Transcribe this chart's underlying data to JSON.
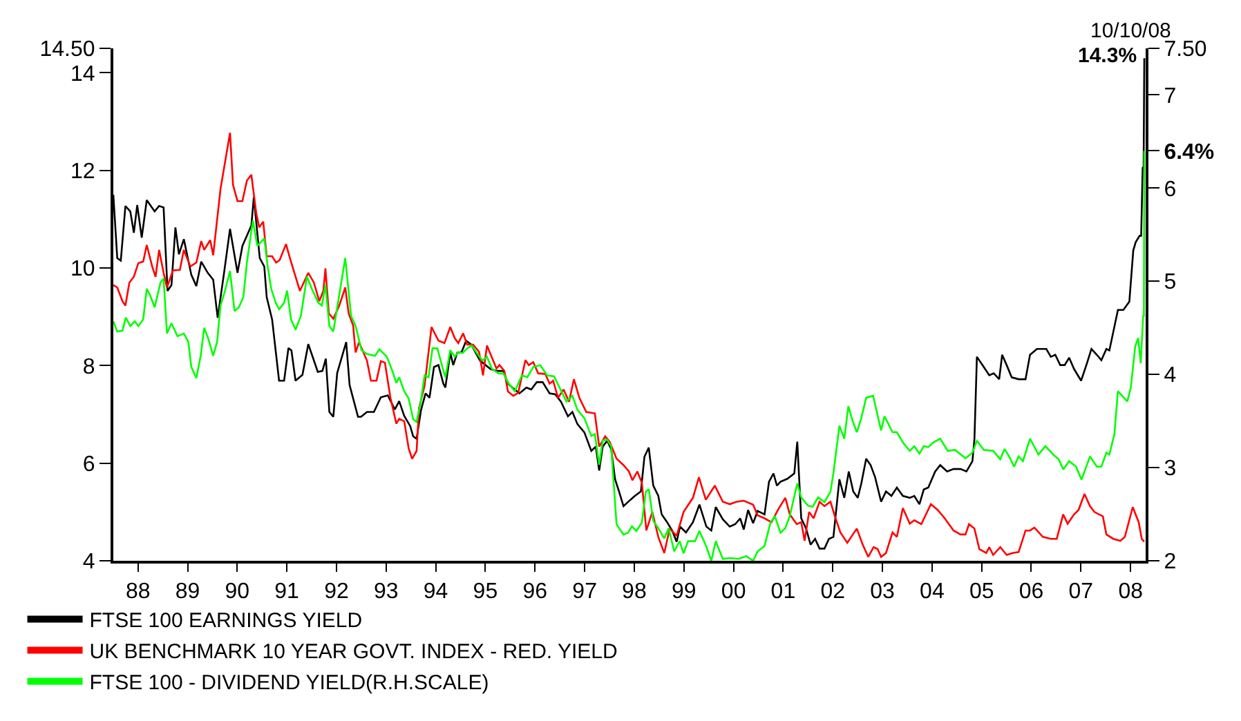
{
  "chart_data": {
    "type": "line",
    "series": [
      {
        "name": "FTSE 100 EARNINGS YIELD",
        "color": "#000000",
        "x": [
          "1988-01-01",
          "1988-01-30",
          "1988-02-25",
          "1988-03-30",
          "1988-05-05",
          "1988-05-31",
          "1988-06-25",
          "1988-07-28",
          "1988-09-03",
          "1988-10-31",
          "1988-12-03",
          "1989-01-05",
          "1989-02-03",
          "1989-03-04",
          "1989-04-02",
          "1989-04-28",
          "1989-06-03",
          "1989-07-28",
          "1989-09-03",
          "1989-10-09",
          "1989-11-26",
          "1990-01-05",
          "1990-02-07",
          "1990-03-26",
          "1990-05-09",
          "1990-07-03",
          "1990-08-08",
          "1990-10-13",
          "1990-10-31",
          "1990-12-14",
          "1991-01-16",
          "1991-02-03",
          "1991-03-15",
          "1991-05-05",
          "1991-06-11",
          "1991-07-13",
          "1991-08-04",
          "1991-09-03",
          "1991-10-24",
          "1991-12-06",
          "1992-02-14",
          "1992-03-19",
          "1992-04-13",
          "1992-05-09",
          "1992-06-07",
          "1992-07-06",
          "1992-09-10",
          "1992-10-05",
          "1992-12-06",
          "1992-12-28",
          "1993-02-10",
          "1993-04-02",
          "1993-05-23",
          "1993-07-13",
          "1993-09-03",
          "1993-10-05",
          "1993-11-11",
          "1993-12-25",
          "1994-01-16",
          "1994-02-10",
          "1994-03-15",
          "1994-04-17",
          "1994-05-16",
          "1994-06-18",
          "1994-07-21",
          "1994-08-26",
          "1994-09-10",
          "1994-10-16",
          "1994-11-07",
          "1994-12-06",
          "1995-01-08",
          "1995-02-10",
          "1995-03-19",
          "1995-04-21",
          "1995-05-23",
          "1995-07-03",
          "1995-08-08",
          "1995-09-21",
          "1995-11-11",
          "1995-12-14",
          "1996-01-16",
          "1996-03-08",
          "1996-04-28",
          "1996-06-03",
          "1996-07-13",
          "1996-08-26",
          "1996-10-16",
          "1996-11-26",
          "1997-01-08",
          "1997-02-28",
          "1997-04-02",
          "1997-05-09",
          "1997-06-29",
          "1997-08-19",
          "1997-09-21",
          "1997-10-16",
          "1997-11-11",
          "1997-12-14",
          "1998-01-12",
          "1998-02-10",
          "1998-03-11",
          "1998-04-13",
          "1998-06-03",
          "1998-07-06",
          "1998-08-19",
          "1998-09-14",
          "1998-10-16",
          "1998-11-18",
          "1998-12-25",
          "1999-01-19",
          "1999-02-28",
          "1999-04-06",
          "1999-05-09",
          "1999-06-03",
          "1999-07-17",
          "1999-09-06",
          "1999-10-24",
          "1999-12-14",
          "2000-01-19",
          "2000-02-21",
          "2000-04-13",
          "2000-06-03",
          "2000-07-13",
          "2000-08-19",
          "2000-09-14",
          "2000-10-16",
          "2000-11-22",
          "2000-12-25",
          "2001-02-14",
          "2001-03-19",
          "2001-04-21",
          "2001-05-16",
          "2001-06-11",
          "2001-08-01",
          "2001-09-21",
          "2001-10-13",
          "2001-11-11",
          "2001-12-17",
          "2002-01-19",
          "2002-02-21",
          "2002-03-26",
          "2002-05-01",
          "2002-06-03",
          "2002-07-06",
          "2002-08-19",
          "2002-09-24",
          "2002-10-27",
          "2002-11-29",
          "2003-01-01",
          "2003-01-27",
          "2003-03-04",
          "2003-04-06",
          "2003-05-09",
          "2003-06-22",
          "2003-07-28",
          "2003-09-06",
          "2003-10-16",
          "2003-11-29",
          "2004-01-19",
          "2004-02-21",
          "2004-03-30",
          "2004-05-01",
          "2004-06-03",
          "2004-07-24",
          "2004-08-30",
          "2004-10-20",
          "2004-12-06",
          "2005-01-27",
          "2005-03-11",
          "2005-04-24",
          "2005-05-09",
          "2005-05-27",
          "2005-07-17",
          "2005-08-26",
          "2005-09-28",
          "2005-11-07",
          "2005-11-29",
          "2006-01-01",
          "2006-02-07",
          "2006-03-30",
          "2006-05-20",
          "2006-06-22",
          "2006-08-12",
          "2006-10-20",
          "2006-11-22",
          "2006-12-25",
          "2007-01-30",
          "2007-03-04",
          "2007-04-06",
          "2007-05-12",
          "2007-07-03",
          "2007-08-12",
          "2007-09-17",
          "2007-10-27",
          "2007-11-29",
          "2008-01-05",
          "2008-01-27",
          "2008-02-25",
          "2008-03-30",
          "2008-05-09",
          "2008-06-22",
          "2008-07-21",
          "2008-08-08",
          "2008-09-06",
          "2008-09-17",
          "2008-09-28",
          "2008-10-05",
          "2008-10-10"
        ],
        "values": [
          11.5,
          10.2,
          10.15,
          11.27,
          11.16,
          10.72,
          11.29,
          10.62,
          11.39,
          11.16,
          11.27,
          11.24,
          9.53,
          9.65,
          10.83,
          10.28,
          10.59,
          9.86,
          9.63,
          10.13,
          9.9,
          9.76,
          8.98,
          9.9,
          10.8,
          9.9,
          10.45,
          10.87,
          11.45,
          10.2,
          10.03,
          9.4,
          8.94,
          7.69,
          7.69,
          8.36,
          8.31,
          7.69,
          7.81,
          8.44,
          7.87,
          7.89,
          8.14,
          7.05,
          6.95,
          7.85,
          8.48,
          7.6,
          6.95,
          6.95,
          7.05,
          7.05,
          7.35,
          7.39,
          7.1,
          7.27,
          6.97,
          6.76,
          6.55,
          6.5,
          7.09,
          7.43,
          7.34,
          7.97,
          8.01,
          7.63,
          7.55,
          8.26,
          8.01,
          8.26,
          8.28,
          8.51,
          8.43,
          8.26,
          8.1,
          8.01,
          7.93,
          7.89,
          7.89,
          7.63,
          7.55,
          7.43,
          7.55,
          7.51,
          7.66,
          7.66,
          7.43,
          7.41,
          7.26,
          6.96,
          7.05,
          6.8,
          6.63,
          6.25,
          6.34,
          5.85,
          6.34,
          6.46,
          6.29,
          5.67,
          5.42,
          5.12,
          5.25,
          5.33,
          5.42,
          6.13,
          6.32,
          5.54,
          5.33,
          4.95,
          4.79,
          4.62,
          4.39,
          4.7,
          4.58,
          4.79,
          5.15,
          4.7,
          4.62,
          5.1,
          4.85,
          4.7,
          4.75,
          4.87,
          4.64,
          5.04,
          4.77,
          5.02,
          4.95,
          5.62,
          5.79,
          5.54,
          5.62,
          5.68,
          5.79,
          6.44,
          4.87,
          4.66,
          4.33,
          4.45,
          4.25,
          4.25,
          4.45,
          4.49,
          5.67,
          5.29,
          5.83,
          5.42,
          5.29,
          5.58,
          6.09,
          5.96,
          5.71,
          5.21,
          5.42,
          5.33,
          5.5,
          5.33,
          5.29,
          5.33,
          5.16,
          5.46,
          5.5,
          5.83,
          5.96,
          5.83,
          5.88,
          5.88,
          5.83,
          6.04,
          6.5,
          8.18,
          7.97,
          7.8,
          7.84,
          7.72,
          8.22,
          8.01,
          7.76,
          7.72,
          7.72,
          8.22,
          8.34,
          8.34,
          8.18,
          8.22,
          8.01,
          8.01,
          8.16,
          7.93,
          7.69,
          8.02,
          8.34,
          8.22,
          8.11,
          8.34,
          8.31,
          8.69,
          9.14,
          9.14,
          9.31,
          10.36,
          10.53,
          10.66,
          10.66,
          12.05,
          12.07,
          14.3
        ]
      },
      {
        "name": "UK BENCHMARK 10 YEAR GOVT. INDEX - RED. YIELD",
        "color": "#ff0000",
        "x": [
          "1988-01-01",
          "1988-01-30",
          "1988-03-08",
          "1988-03-30",
          "1988-04-28",
          "1988-05-31",
          "1988-07-03",
          "1988-08-08",
          "1988-09-03",
          "1988-10-13",
          "1988-11-07",
          "1988-12-03",
          "1989-01-05",
          "1989-01-30",
          "1989-03-15",
          "1989-05-05",
          "1989-06-03",
          "1989-07-21",
          "1989-09-03",
          "1989-10-09",
          "1989-10-31",
          "1989-12-14",
          "1990-01-05",
          "1990-02-28",
          "1990-05-09",
          "1990-05-31",
          "1990-07-03",
          "1990-08-08",
          "1990-09-10",
          "1990-10-13",
          "1990-11-18",
          "1990-12-10",
          "1991-01-08",
          "1991-02-03",
          "1991-03-15",
          "1991-04-13",
          "1991-05-09",
          "1991-06-25",
          "1991-07-24",
          "1991-10-05",
          "1991-12-06",
          "1992-01-16",
          "1992-02-25",
          "1992-03-26",
          "1992-04-10",
          "1992-05-05",
          "1992-06-07",
          "1992-07-21",
          "1992-09-03",
          "1992-09-28",
          "1992-10-31",
          "1992-11-18",
          "1992-12-14",
          "1993-02-10",
          "1993-03-11",
          "1993-04-21",
          "1993-05-23",
          "1993-06-22",
          "1993-08-01",
          "1993-09-14",
          "1993-10-05",
          "1993-11-11",
          "1993-12-14",
          "1994-01-08",
          "1994-02-10",
          "1994-02-28",
          "1994-04-10",
          "1994-05-31",
          "1994-07-21",
          "1994-09-03",
          "1994-10-16",
          "1994-11-18",
          "1994-12-14",
          "1995-01-19",
          "1995-02-17",
          "1995-04-02",
          "1995-05-16",
          "1995-06-14",
          "1995-07-13",
          "1995-08-19",
          "1995-09-21",
          "1995-10-13",
          "1995-11-18",
          "1995-12-14",
          "1996-01-23",
          "1996-02-28",
          "1996-04-21",
          "1996-05-16",
          "1996-06-18",
          "1996-07-24",
          "1996-09-14",
          "1996-10-16",
          "1996-11-11",
          "1996-12-17",
          "1997-01-27",
          "1997-03-08",
          "1997-04-13",
          "1997-05-23",
          "1997-07-13",
          "1997-09-14",
          "1997-10-16",
          "1997-11-29",
          "1998-01-01",
          "1998-02-21",
          "1998-04-13",
          "1998-05-23",
          "1998-06-18",
          "1998-07-24",
          "1998-08-26",
          "1998-09-28",
          "1998-11-11",
          "1998-12-25",
          "1999-02-07",
          "1999-03-19",
          "1999-05-09",
          "1999-06-29",
          "1999-09-06",
          "1999-10-20",
          "1999-12-10",
          "2000-02-14",
          "2000-04-13",
          "2000-06-03",
          "2000-07-24",
          "2000-09-14",
          "2000-11-22",
          "2000-12-25",
          "2001-02-14",
          "2001-04-06",
          "2001-05-27",
          "2001-07-17",
          "2001-08-19",
          "2001-10-09",
          "2001-11-11",
          "2001-12-06",
          "2002-01-08",
          "2002-02-10",
          "2002-03-26",
          "2002-05-01",
          "2002-06-14",
          "2002-07-17",
          "2002-08-26",
          "2002-10-16",
          "2002-12-25",
          "2003-02-07",
          "2003-03-19",
          "2003-04-28",
          "2003-05-27",
          "2003-06-22",
          "2003-07-28",
          "2003-09-14",
          "2003-10-16",
          "2003-11-29",
          "2004-01-19",
          "2004-02-21",
          "2004-04-13",
          "2004-06-22",
          "2004-08-12",
          "2004-10-02",
          "2004-12-06",
          "2005-01-27",
          "2005-03-04",
          "2005-03-30",
          "2005-05-09",
          "2005-06-14",
          "2005-08-04",
          "2005-08-26",
          "2005-09-24",
          "2005-11-15",
          "2006-01-01",
          "2006-02-14",
          "2006-03-30",
          "2006-05-20",
          "2006-06-22",
          "2006-07-24",
          "2006-09-24",
          "2006-11-22",
          "2007-01-05",
          "2007-02-21",
          "2007-03-26",
          "2007-05-12",
          "2007-06-14",
          "2007-07-28",
          "2007-09-06",
          "2007-10-09",
          "2007-12-10",
          "2008-01-05",
          "2008-02-25",
          "2008-04-17",
          "2008-05-20",
          "2008-07-17",
          "2008-08-30",
          "2008-09-21",
          "2008-10-09"
        ],
        "values": [
          9.65,
          9.6,
          9.32,
          9.23,
          9.7,
          9.82,
          10.1,
          10.13,
          10.47,
          10.03,
          9.82,
          10.37,
          9.9,
          9.6,
          9.95,
          9.96,
          10.37,
          10.03,
          10.11,
          10.55,
          10.37,
          10.57,
          10.26,
          11.62,
          12.77,
          11.7,
          11.37,
          11.37,
          11.79,
          11.91,
          11.12,
          10.83,
          10.95,
          10.24,
          10.24,
          10.11,
          10.16,
          10.49,
          10.2,
          9.53,
          9.9,
          9.7,
          9.32,
          9.53,
          9.99,
          9.07,
          8.96,
          9.23,
          9.6,
          9.07,
          8.82,
          8.27,
          8.48,
          8.1,
          7.69,
          7.69,
          8.09,
          8.06,
          7.35,
          6.81,
          6.91,
          6.86,
          6.3,
          6.09,
          6.25,
          7.13,
          7.59,
          8.79,
          8.51,
          8.46,
          8.79,
          8.56,
          8.46,
          8.66,
          8.43,
          8.43,
          8.28,
          7.8,
          8.41,
          8.16,
          7.94,
          8.01,
          7.89,
          7.47,
          7.38,
          7.44,
          8.11,
          8.01,
          8.07,
          7.84,
          7.83,
          7.63,
          7.69,
          7.34,
          7.51,
          7.26,
          7.72,
          7.34,
          7.05,
          7.02,
          6.34,
          6.55,
          6.44,
          6.09,
          5.96,
          5.83,
          5.65,
          5.83,
          5.6,
          4.62,
          5.0,
          4.49,
          4.16,
          4.66,
          4.51,
          5.0,
          5.29,
          5.71,
          5.25,
          5.54,
          5.21,
          5.16,
          5.21,
          5.23,
          5.15,
          4.93,
          4.87,
          4.79,
          5.06,
          5.29,
          4.95,
          4.75,
          4.79,
          4.41,
          5.0,
          4.87,
          5.21,
          5.12,
          5.21,
          4.91,
          4.58,
          4.37,
          4.66,
          4.33,
          4.08,
          4.28,
          4.24,
          4.08,
          4.16,
          4.58,
          4.49,
          5.08,
          4.76,
          4.83,
          4.75,
          5.16,
          5.04,
          4.87,
          4.62,
          4.54,
          4.54,
          4.75,
          4.66,
          4.24,
          4.16,
          4.28,
          4.12,
          4.28,
          4.12,
          4.16,
          4.18,
          4.62,
          4.62,
          4.68,
          4.49,
          4.45,
          4.45,
          4.95,
          4.76,
          4.95,
          5.04,
          5.37,
          5.12,
          5.0,
          4.91,
          4.54,
          4.45,
          4.41,
          4.49,
          5.1,
          4.79,
          4.45,
          4.39
        ]
      },
      {
        "name": "FTSE 100 - DIVIDEND YIELD(R.H.SCALE)",
        "color": "#00ff00",
        "axis": "y2",
        "x": [
          "1988-01-01",
          "1988-01-30",
          "1988-03-08",
          "1988-04-02",
          "1988-05-05",
          "1988-06-07",
          "1988-07-03",
          "1988-08-08",
          "1988-09-03",
          "1988-09-28",
          "1988-10-31",
          "1988-12-14",
          "1989-01-05",
          "1989-01-30",
          "1989-03-04",
          "1989-04-17",
          "1989-06-03",
          "1989-07-06",
          "1989-07-28",
          "1989-09-03",
          "1989-10-05",
          "1989-10-31",
          "1989-12-03",
          "1990-01-05",
          "1990-02-03",
          "1990-02-28",
          "1990-03-30",
          "1990-05-09",
          "1990-06-11",
          "1990-07-13",
          "1990-08-15",
          "1990-09-10",
          "1990-10-24",
          "1990-11-26",
          "1991-01-16",
          "1991-02-10",
          "1991-03-08",
          "1991-04-10",
          "1991-05-05",
          "1991-06-11",
          "1991-07-03",
          "1991-08-01",
          "1991-09-03",
          "1991-10-13",
          "1991-11-26",
          "1992-01-01",
          "1992-02-17",
          "1992-03-15",
          "1992-04-10",
          "1992-05-09",
          "1992-06-07",
          "1992-07-06",
          "1992-09-03",
          "1992-10-16",
          "1992-11-18",
          "1993-01-01",
          "1993-02-10",
          "1993-04-10",
          "1993-05-12",
          "1993-07-06",
          "1993-08-15",
          "1993-09-14",
          "1993-10-05",
          "1993-11-11",
          "1993-12-14",
          "1994-01-16",
          "1994-02-10",
          "1994-03-11",
          "1994-04-10",
          "1994-05-09",
          "1994-06-07",
          "1994-07-13",
          "1994-08-15",
          "1994-09-10",
          "1994-10-16",
          "1994-11-18",
          "1994-12-14",
          "1995-01-16",
          "1995-02-17",
          "1995-03-22",
          "1995-05-09",
          "1995-06-11",
          "1995-07-13",
          "1995-08-19",
          "1995-10-09",
          "1995-11-11",
          "1995-12-21",
          "1996-02-03",
          "1996-03-26",
          "1996-05-05",
          "1996-06-18",
          "1996-08-08",
          "1996-09-28",
          "1996-11-18",
          "1996-12-28",
          "1997-02-17",
          "1997-04-02",
          "1997-05-09",
          "1997-06-29",
          "1997-08-19",
          "1997-09-14",
          "1997-10-16",
          "1997-11-11",
          "1997-12-14",
          "1998-01-12",
          "1998-02-21",
          "1998-04-13",
          "1998-05-16",
          "1998-06-14",
          "1998-07-17",
          "1998-08-26",
          "1998-09-24",
          "1998-10-16",
          "1998-11-18",
          "1998-12-25",
          "1999-02-07",
          "1999-03-11",
          "1999-04-21",
          "1999-05-31",
          "1999-06-29",
          "1999-08-01",
          "1999-09-21",
          "1999-10-24",
          "1999-12-14",
          "2000-01-19",
          "2000-02-21",
          "2000-04-13",
          "2000-06-03",
          "2000-08-08",
          "2000-10-02",
          "2000-11-22",
          "2000-12-25",
          "2001-02-14",
          "2001-03-30",
          "2001-05-01",
          "2001-06-11",
          "2001-07-17",
          "2001-08-19",
          "2001-10-13",
          "2001-11-11",
          "2002-01-01",
          "2002-02-03",
          "2002-03-15",
          "2002-05-01",
          "2002-06-14",
          "2002-07-06",
          "2002-08-19",
          "2002-09-24",
          "2002-10-24",
          "2002-11-22",
          "2002-12-25",
          "2003-01-27",
          "2003-03-04",
          "2003-04-24",
          "2003-06-22",
          "2003-07-17",
          "2003-09-14",
          "2003-10-16",
          "2003-11-29",
          "2004-01-19",
          "2004-02-21",
          "2004-03-30",
          "2004-05-01",
          "2004-06-03",
          "2004-07-10",
          "2004-08-30",
          "2004-10-24",
          "2004-12-17",
          "2005-03-04",
          "2005-04-24",
          "2005-05-27",
          "2005-07-17",
          "2005-09-24",
          "2005-11-15",
          "2005-12-17",
          "2006-01-19",
          "2006-02-25",
          "2006-03-30",
          "2006-05-01",
          "2006-06-22",
          "2006-08-23",
          "2006-10-13",
          "2006-12-10",
          "2007-01-19",
          "2007-02-21",
          "2007-04-06",
          "2007-05-27",
          "2007-07-06",
          "2007-09-06",
          "2007-10-27",
          "2007-11-29",
          "2008-01-05",
          "2008-01-27",
          "2008-03-04",
          "2008-03-30",
          "2008-06-07",
          "2008-07-03",
          "2008-08-04",
          "2008-08-26",
          "2008-09-14",
          "2008-10-02",
          "2008-10-07",
          "2008-10-10"
        ],
        "values": [
          4.57,
          4.46,
          4.47,
          4.61,
          4.52,
          4.57,
          4.52,
          4.59,
          4.92,
          4.85,
          4.72,
          4.99,
          5.03,
          4.44,
          4.55,
          4.41,
          4.44,
          4.35,
          4.08,
          3.96,
          4.2,
          4.5,
          4.37,
          4.2,
          4.35,
          4.74,
          4.88,
          5.11,
          4.68,
          4.72,
          4.83,
          5.2,
          5.65,
          5.38,
          5.46,
          5.16,
          4.92,
          4.77,
          4.7,
          4.77,
          4.9,
          4.59,
          4.48,
          4.63,
          5.05,
          4.92,
          4.77,
          4.74,
          4.96,
          4.52,
          4.46,
          4.72,
          5.25,
          4.63,
          4.52,
          4.26,
          4.22,
          4.2,
          4.27,
          4.19,
          4.04,
          3.91,
          3.97,
          3.82,
          3.74,
          3.52,
          3.49,
          3.69,
          3.99,
          3.97,
          4.28,
          4.28,
          4.1,
          3.97,
          4.26,
          4.19,
          4.24,
          4.23,
          4.28,
          4.31,
          4.21,
          4.15,
          4.19,
          4.06,
          4.01,
          4.01,
          3.9,
          3.82,
          3.99,
          3.97,
          4.08,
          4.1,
          3.99,
          3.98,
          3.86,
          3.71,
          3.77,
          3.62,
          3.53,
          3.34,
          3.36,
          3.03,
          3.29,
          3.3,
          3.23,
          2.39,
          2.28,
          2.3,
          2.37,
          2.32,
          2.41,
          2.74,
          2.77,
          2.43,
          2.35,
          2.24,
          2.35,
          2.1,
          2.21,
          2.08,
          2.21,
          2.21,
          2.32,
          2.15,
          2.0,
          2.21,
          2.02,
          2.03,
          2.02,
          2.05,
          2.0,
          2.1,
          2.16,
          2.41,
          2.48,
          2.3,
          2.35,
          2.48,
          2.83,
          2.68,
          2.59,
          2.58,
          2.68,
          2.63,
          2.74,
          2.94,
          3.45,
          3.31,
          3.66,
          3.51,
          3.38,
          3.53,
          3.75,
          3.77,
          3.4,
          3.55,
          3.38,
          3.38,
          3.27,
          3.18,
          3.23,
          3.15,
          3.23,
          3.22,
          3.27,
          3.31,
          3.18,
          3.19,
          3.1,
          3.16,
          3.29,
          3.19,
          3.18,
          3.09,
          3.2,
          3.12,
          3.01,
          3.12,
          3.07,
          3.31,
          3.14,
          3.23,
          3.14,
          3.09,
          2.98,
          3.07,
          3.01,
          2.87,
          3.12,
          3.01,
          3.01,
          3.16,
          3.14,
          3.36,
          3.82,
          3.71,
          3.86,
          4.3,
          4.39,
          4.12,
          4.63,
          4.63,
          6.4
        ]
      }
    ],
    "xlim": [
      "1988-01-01",
      "2008-10-20"
    ],
    "xticks": [
      {
        "value": "1988-07-01",
        "label": "88"
      },
      {
        "value": "1989-07-01",
        "label": "89"
      },
      {
        "value": "1990-07-01",
        "label": "90"
      },
      {
        "value": "1991-07-01",
        "label": "91"
      },
      {
        "value": "1992-07-01",
        "label": "92"
      },
      {
        "value": "1993-07-01",
        "label": "93"
      },
      {
        "value": "1994-07-01",
        "label": "94"
      },
      {
        "value": "1995-07-01",
        "label": "95"
      },
      {
        "value": "1996-07-01",
        "label": "96"
      },
      {
        "value": "1997-07-01",
        "label": "97"
      },
      {
        "value": "1998-07-01",
        "label": "98"
      },
      {
        "value": "1999-07-01",
        "label": "99"
      },
      {
        "value": "2000-07-01",
        "label": "00"
      },
      {
        "value": "2001-07-01",
        "label": "01"
      },
      {
        "value": "2002-07-01",
        "label": "02"
      },
      {
        "value": "2003-07-01",
        "label": "03"
      },
      {
        "value": "2004-07-01",
        "label": "04"
      },
      {
        "value": "2005-07-01",
        "label": "05"
      },
      {
        "value": "2006-07-01",
        "label": "06"
      },
      {
        "value": "2007-07-01",
        "label": "07"
      },
      {
        "value": "2008-07-01",
        "label": "08"
      }
    ],
    "ylim": [
      4,
      14.5
    ],
    "yticks": [
      4,
      6,
      8,
      10,
      12,
      14,
      {
        "value": 14.5,
        "label": "14.50"
      }
    ],
    "y2lim": [
      2,
      7.5
    ],
    "y2ticks": [
      2,
      3,
      4,
      5,
      6,
      {
        "value": 6.4,
        "label": "6.4%"
      },
      7,
      {
        "value": 7.5,
        "label": "7.50"
      }
    ],
    "legend": "bottom left",
    "annotations": [
      "10/10/08",
      "14.3%"
    ]
  }
}
